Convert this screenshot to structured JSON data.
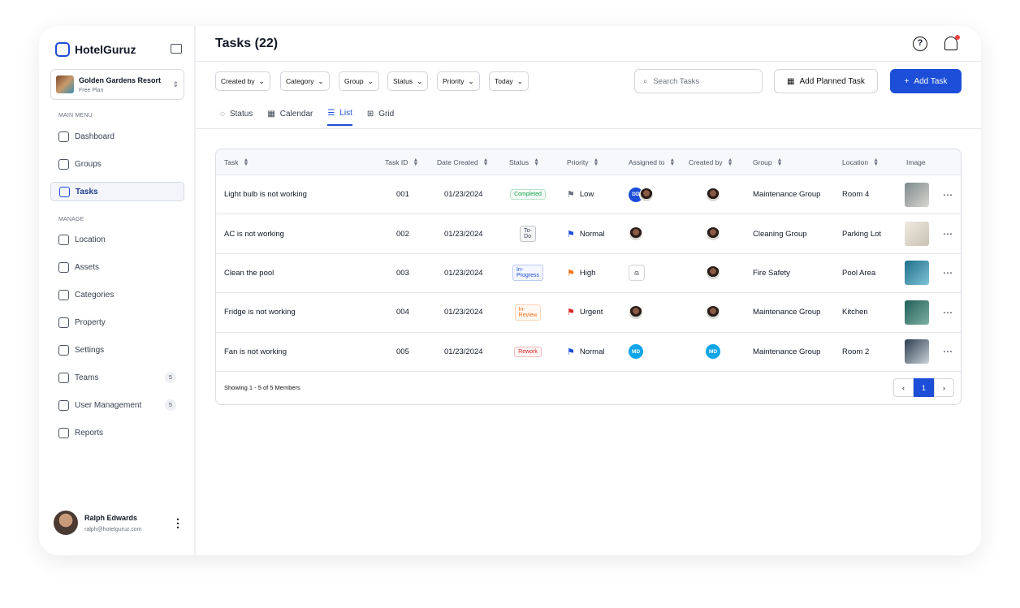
{
  "app": {
    "name": "HotelGuruz"
  },
  "property": {
    "name": "Golden Gardens Resort",
    "plan": "Free Plan"
  },
  "sidebar": {
    "main_menu_label": "MAIN MENU",
    "manage_label": "MANAGE",
    "main_items": [
      {
        "label": "Dashboard"
      },
      {
        "label": "Groups"
      },
      {
        "label": "Tasks",
        "active": true
      }
    ],
    "manage_items": [
      {
        "label": "Location"
      },
      {
        "label": "Assets"
      },
      {
        "label": "Categories"
      },
      {
        "label": "Property"
      },
      {
        "label": "Settings"
      },
      {
        "label": "Teams",
        "badge": "5"
      },
      {
        "label": "User Management",
        "badge": "5"
      },
      {
        "label": "Reports"
      }
    ]
  },
  "user": {
    "name": "Ralph Edwards",
    "email": "ralph@hotelguruz.com"
  },
  "header": {
    "title": "Tasks (22)",
    "help": "?"
  },
  "filters": [
    "Created by",
    "Category",
    "Group",
    "Status",
    "Priority",
    "Today"
  ],
  "search": {
    "placeholder": "Search Tasks"
  },
  "buttons": {
    "planned": "Add Planned Task",
    "add": "Add Task"
  },
  "views": [
    "Status",
    "Calendar",
    "List",
    "Grid"
  ],
  "table": {
    "columns": [
      "Task",
      "Task ID",
      "Date Created",
      "Status",
      "Priority",
      "Assigned to",
      "Created by",
      "Group",
      "Location",
      "Image"
    ],
    "rows": [
      {
        "task": "Light bulb is not working",
        "id": "001",
        "date": "01/23/2024",
        "status": "Completed",
        "priority": "Low",
        "assigned": "DD",
        "group": "Maintenance Group",
        "location": "Room 4"
      },
      {
        "task": "AC is not working",
        "id": "002",
        "date": "01/23/2024",
        "status": "To-Do",
        "priority": "Normal",
        "group": "Cleaning Group",
        "location": "Parking Lot"
      },
      {
        "task": "Clean the pool",
        "id": "003",
        "date": "01/23/2024",
        "status": "In-Progress",
        "priority": "High",
        "group": "Fire Safety",
        "location": "Pool Area"
      },
      {
        "task": "Fridge is not working",
        "id": "004",
        "date": "01/23/2024",
        "status": "In-Review",
        "priority": "Urgent",
        "group": "Maintenance Group",
        "location": "Kitchen"
      },
      {
        "task": "Fan is not working",
        "id": "005",
        "date": "01/23/2024",
        "status": "Rework",
        "priority": "Normal",
        "assigned": "MD",
        "created": "MD",
        "group": "Maintenance Group",
        "location": "Room 2"
      }
    ],
    "footer": "Showing 1 - 5 of 5 Members",
    "page": "1"
  },
  "colors": {
    "accent": "#1d4ed8",
    "Completed": "#16a34a",
    "To-Do": "#374151",
    "In-Progress": "#1d4ed8",
    "In-Review": "#f97316",
    "Rework": "#dc2626",
    "Low": "#6b7280",
    "Normal": "#1d4ed8",
    "High": "#f97316",
    "Urgent": "#dc2626"
  }
}
